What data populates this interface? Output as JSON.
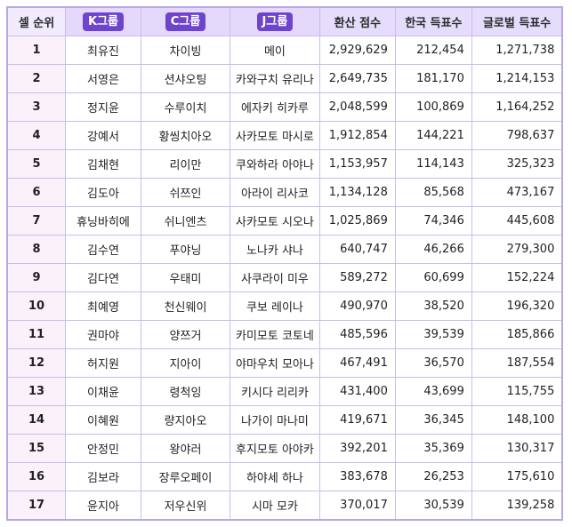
{
  "headers": {
    "rank": "셀 순위",
    "k_group": "K그룹",
    "c_group": "C그룹",
    "j_group": "J그룹",
    "converted_score": "환산 점수",
    "korea_votes": "한국 득표수",
    "global_votes": "글로벌 득표수"
  },
  "rows": [
    {
      "rank": "1",
      "k": "최유진",
      "c": "차이빙",
      "j": "메이",
      "score": "2,929,629",
      "korea": "212,454",
      "global": "1,271,738"
    },
    {
      "rank": "2",
      "k": "서영은",
      "c": "션샤오팅",
      "j": "카와구치 유리나",
      "score": "2,649,735",
      "korea": "181,170",
      "global": "1,214,153"
    },
    {
      "rank": "3",
      "k": "정지윤",
      "c": "수루이치",
      "j": "에자키 히카루",
      "score": "2,048,599",
      "korea": "100,869",
      "global": "1,164,252"
    },
    {
      "rank": "4",
      "k": "강예서",
      "c": "황씽치아오",
      "j": "사카모토 마시로",
      "score": "1,912,854",
      "korea": "144,221",
      "global": "798,637"
    },
    {
      "rank": "5",
      "k": "김채현",
      "c": "리이만",
      "j": "쿠와하라 아야나",
      "score": "1,153,957",
      "korea": "114,143",
      "global": "325,323"
    },
    {
      "rank": "6",
      "k": "김도아",
      "c": "쉬쯔인",
      "j": "아라이 리사코",
      "score": "1,134,128",
      "korea": "85,568",
      "global": "473,167"
    },
    {
      "rank": "7",
      "k": "휴닝바히에",
      "c": "쉬니엔츠",
      "j": "사카모토 시오나",
      "score": "1,025,869",
      "korea": "74,346",
      "global": "445,608"
    },
    {
      "rank": "8",
      "k": "김수연",
      "c": "푸야닝",
      "j": "노나카 샤나",
      "score": "640,747",
      "korea": "46,266",
      "global": "279,300"
    },
    {
      "rank": "9",
      "k": "김다연",
      "c": "우태미",
      "j": "사쿠라이 미우",
      "score": "589,272",
      "korea": "60,699",
      "global": "152,224"
    },
    {
      "rank": "10",
      "k": "최예영",
      "c": "천신웨이",
      "j": "쿠보 레이나",
      "score": "490,970",
      "korea": "38,520",
      "global": "196,320"
    },
    {
      "rank": "11",
      "k": "권마야",
      "c": "양쯔거",
      "j": "카미모토 코토네",
      "score": "485,596",
      "korea": "39,539",
      "global": "185,866"
    },
    {
      "rank": "12",
      "k": "허지원",
      "c": "지아이",
      "j": "야마우치 모아나",
      "score": "467,491",
      "korea": "36,570",
      "global": "187,554"
    },
    {
      "rank": "13",
      "k": "이채윤",
      "c": "령척잉",
      "j": "키시다 리리카",
      "score": "431,400",
      "korea": "43,699",
      "global": "115,755"
    },
    {
      "rank": "14",
      "k": "이혜원",
      "c": "량지아오",
      "j": "나가이 마나미",
      "score": "419,671",
      "korea": "36,345",
      "global": "148,100"
    },
    {
      "rank": "15",
      "k": "안정민",
      "c": "왕야러",
      "j": "후지모토 아야카",
      "score": "392,201",
      "korea": "35,369",
      "global": "130,317"
    },
    {
      "rank": "16",
      "k": "김보라",
      "c": "장루오페이",
      "j": "하야세 하나",
      "score": "383,678",
      "korea": "26,253",
      "global": "175,610"
    },
    {
      "rank": "17",
      "k": "윤지아",
      "c": "저우신위",
      "j": "시마 모카",
      "score": "370,017",
      "korea": "30,539",
      "global": "139,258"
    }
  ]
}
